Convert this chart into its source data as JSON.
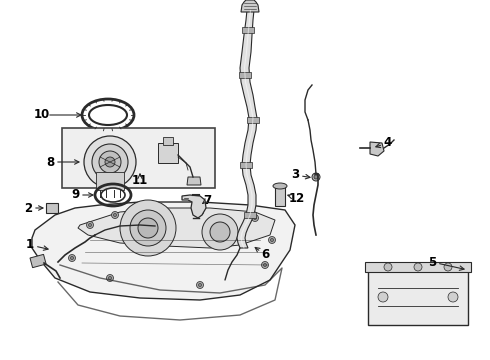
{
  "bg_color": "#ffffff",
  "line_color": "#2a2a2a",
  "label_color": "#000000",
  "fig_width": 4.9,
  "fig_height": 3.6,
  "dpi": 100,
  "labels": {
    "1": [
      28,
      207,
      62,
      212
    ],
    "2": [
      28,
      183,
      60,
      183
    ],
    "3": [
      295,
      175,
      315,
      172
    ],
    "4": [
      375,
      148,
      368,
      152
    ],
    "5": [
      418,
      110,
      405,
      118
    ],
    "6": [
      263,
      275,
      255,
      265
    ],
    "7": [
      193,
      195,
      198,
      198
    ],
    "8": [
      55,
      160,
      75,
      162
    ],
    "9": [
      75,
      187,
      95,
      187
    ],
    "10": [
      42,
      122,
      72,
      122
    ],
    "11": [
      120,
      148,
      120,
      152
    ],
    "12": [
      294,
      200,
      280,
      200
    ]
  }
}
